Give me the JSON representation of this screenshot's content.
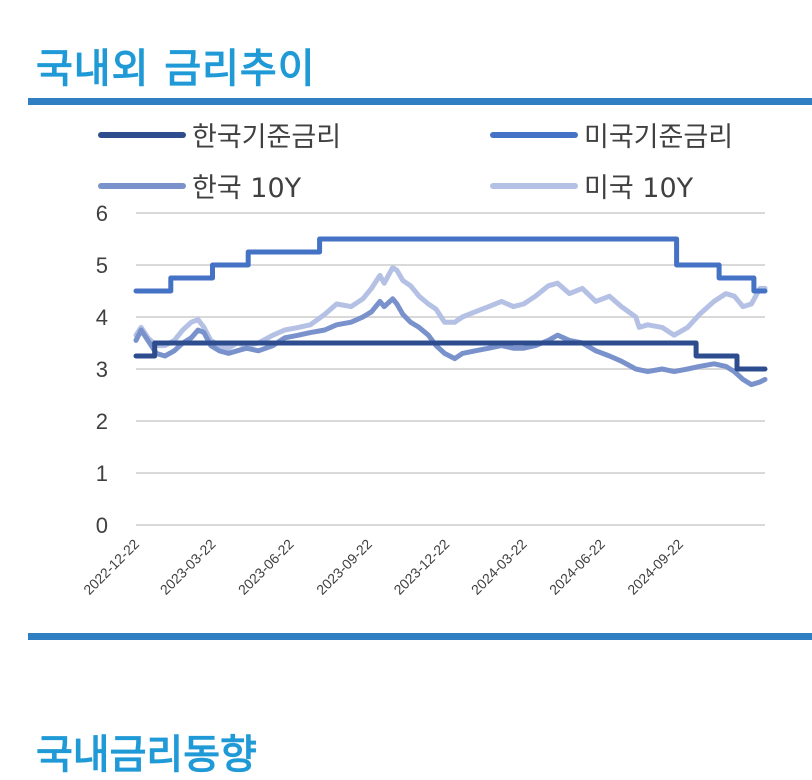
{
  "page": {
    "title": "국내외 금리추이",
    "next_section_title": "국내금리동향"
  },
  "colors": {
    "title": "#1f9ad6",
    "rule": "#2f7fc2",
    "kr_base": "#2e4d8e",
    "us_base": "#4472c4",
    "kr_10y": "#7a92cc",
    "us_10y": "#b4c1e4",
    "grid": "#d9d9d9"
  },
  "chart_data": {
    "type": "line",
    "title": "",
    "ylim": [
      0,
      6
    ],
    "yticks": [
      "0",
      "1",
      "2",
      "3",
      "4",
      "5",
      "6"
    ],
    "x_range": [
      "2022-12-22",
      "2024-12-31"
    ],
    "xticks": [
      "2022-12-22",
      "2023-03-22",
      "2023-06-22",
      "2023-09-22",
      "2023-12-22",
      "2024-03-22",
      "2024-06-22",
      "2024-09-22"
    ],
    "series": [
      {
        "name": "한국기준금리",
        "color": "#2e4d8e",
        "step": true,
        "points": [
          [
            "2022-12-22",
            3.25
          ],
          [
            "2023-01-13",
            3.5
          ],
          [
            "2024-10-11",
            3.25
          ],
          [
            "2024-11-28",
            3.0
          ],
          [
            "2024-12-31",
            3.0
          ]
        ]
      },
      {
        "name": "미국기준금리",
        "color": "#4472c4",
        "step": true,
        "points": [
          [
            "2022-12-22",
            4.5
          ],
          [
            "2023-02-01",
            4.75
          ],
          [
            "2023-03-22",
            5.0
          ],
          [
            "2023-05-03",
            5.25
          ],
          [
            "2023-07-26",
            5.5
          ],
          [
            "2024-09-18",
            5.0
          ],
          [
            "2024-11-07",
            4.75
          ],
          [
            "2024-12-18",
            4.5
          ],
          [
            "2024-12-31",
            4.5
          ]
        ]
      },
      {
        "name": "한국 10Y",
        "color": "#7a92cc",
        "step": false,
        "points": [
          [
            "2022-12-22",
            3.55
          ],
          [
            "2022-12-28",
            3.75
          ],
          [
            "2023-01-05",
            3.55
          ],
          [
            "2023-01-15",
            3.3
          ],
          [
            "2023-01-25",
            3.25
          ],
          [
            "2023-02-05",
            3.35
          ],
          [
            "2023-02-15",
            3.5
          ],
          [
            "2023-02-25",
            3.6
          ],
          [
            "2023-03-05",
            3.75
          ],
          [
            "2023-03-12",
            3.7
          ],
          [
            "2023-03-20",
            3.45
          ],
          [
            "2023-03-30",
            3.35
          ],
          [
            "2023-04-10",
            3.3
          ],
          [
            "2023-04-20",
            3.35
          ],
          [
            "2023-05-01",
            3.4
          ],
          [
            "2023-05-15",
            3.35
          ],
          [
            "2023-06-01",
            3.45
          ],
          [
            "2023-06-15",
            3.6
          ],
          [
            "2023-07-01",
            3.65
          ],
          [
            "2023-07-15",
            3.7
          ],
          [
            "2023-08-01",
            3.75
          ],
          [
            "2023-08-15",
            3.85
          ],
          [
            "2023-09-01",
            3.9
          ],
          [
            "2023-09-15",
            4.0
          ],
          [
            "2023-09-25",
            4.1
          ],
          [
            "2023-10-05",
            4.3
          ],
          [
            "2023-10-10",
            4.2
          ],
          [
            "2023-10-20",
            4.35
          ],
          [
            "2023-10-25",
            4.25
          ],
          [
            "2023-11-01",
            4.05
          ],
          [
            "2023-11-10",
            3.9
          ],
          [
            "2023-11-20",
            3.8
          ],
          [
            "2023-12-01",
            3.65
          ],
          [
            "2023-12-10",
            3.45
          ],
          [
            "2023-12-20",
            3.3
          ],
          [
            "2024-01-01",
            3.2
          ],
          [
            "2024-01-10",
            3.3
          ],
          [
            "2024-01-25",
            3.35
          ],
          [
            "2024-02-10",
            3.4
          ],
          [
            "2024-02-25",
            3.45
          ],
          [
            "2024-03-10",
            3.4
          ],
          [
            "2024-03-22",
            3.4
          ],
          [
            "2024-04-05",
            3.45
          ],
          [
            "2024-04-20",
            3.55
          ],
          [
            "2024-05-01",
            3.65
          ],
          [
            "2024-05-15",
            3.55
          ],
          [
            "2024-05-30",
            3.5
          ],
          [
            "2024-06-15",
            3.35
          ],
          [
            "2024-07-01",
            3.25
          ],
          [
            "2024-07-15",
            3.15
          ],
          [
            "2024-08-01",
            3.0
          ],
          [
            "2024-08-15",
            2.95
          ],
          [
            "2024-09-01",
            3.0
          ],
          [
            "2024-09-15",
            2.95
          ],
          [
            "2024-10-01",
            3.0
          ],
          [
            "2024-10-15",
            3.05
          ],
          [
            "2024-11-01",
            3.1
          ],
          [
            "2024-11-15",
            3.05
          ],
          [
            "2024-11-25",
            2.95
          ],
          [
            "2024-12-05",
            2.8
          ],
          [
            "2024-12-15",
            2.7
          ],
          [
            "2024-12-25",
            2.75
          ],
          [
            "2024-12-31",
            2.8
          ]
        ]
      },
      {
        "name": "미국 10Y",
        "color": "#b4c1e4",
        "step": false,
        "points": [
          [
            "2022-12-22",
            3.65
          ],
          [
            "2022-12-28",
            3.8
          ],
          [
            "2023-01-05",
            3.6
          ],
          [
            "2023-01-15",
            3.45
          ],
          [
            "2023-01-25",
            3.45
          ],
          [
            "2023-02-05",
            3.55
          ],
          [
            "2023-02-15",
            3.75
          ],
          [
            "2023-02-25",
            3.9
          ],
          [
            "2023-03-05",
            3.95
          ],
          [
            "2023-03-12",
            3.8
          ],
          [
            "2023-03-20",
            3.55
          ],
          [
            "2023-03-30",
            3.45
          ],
          [
            "2023-04-10",
            3.4
          ],
          [
            "2023-04-20",
            3.5
          ],
          [
            "2023-05-01",
            3.45
          ],
          [
            "2023-05-15",
            3.5
          ],
          [
            "2023-06-01",
            3.65
          ],
          [
            "2023-06-15",
            3.75
          ],
          [
            "2023-07-01",
            3.8
          ],
          [
            "2023-07-15",
            3.85
          ],
          [
            "2023-08-01",
            4.05
          ],
          [
            "2023-08-15",
            4.25
          ],
          [
            "2023-09-01",
            4.2
          ],
          [
            "2023-09-15",
            4.35
          ],
          [
            "2023-09-25",
            4.55
          ],
          [
            "2023-10-05",
            4.8
          ],
          [
            "2023-10-10",
            4.65
          ],
          [
            "2023-10-20",
            4.95
          ],
          [
            "2023-10-25",
            4.9
          ],
          [
            "2023-11-01",
            4.7
          ],
          [
            "2023-11-10",
            4.6
          ],
          [
            "2023-11-20",
            4.4
          ],
          [
            "2023-12-01",
            4.25
          ],
          [
            "2023-12-10",
            4.15
          ],
          [
            "2023-12-20",
            3.9
          ],
          [
            "2024-01-01",
            3.9
          ],
          [
            "2024-01-10",
            4.0
          ],
          [
            "2024-01-25",
            4.1
          ],
          [
            "2024-02-10",
            4.2
          ],
          [
            "2024-02-25",
            4.3
          ],
          [
            "2024-03-10",
            4.2
          ],
          [
            "2024-03-22",
            4.25
          ],
          [
            "2024-04-05",
            4.4
          ],
          [
            "2024-04-20",
            4.6
          ],
          [
            "2024-05-01",
            4.65
          ],
          [
            "2024-05-15",
            4.45
          ],
          [
            "2024-05-30",
            4.55
          ],
          [
            "2024-06-15",
            4.3
          ],
          [
            "2024-07-01",
            4.4
          ],
          [
            "2024-07-15",
            4.2
          ],
          [
            "2024-08-01",
            4.0
          ],
          [
            "2024-08-05",
            3.8
          ],
          [
            "2024-08-15",
            3.85
          ],
          [
            "2024-09-01",
            3.8
          ],
          [
            "2024-09-15",
            3.65
          ],
          [
            "2024-10-01",
            3.8
          ],
          [
            "2024-10-15",
            4.05
          ],
          [
            "2024-11-01",
            4.3
          ],
          [
            "2024-11-15",
            4.45
          ],
          [
            "2024-11-25",
            4.4
          ],
          [
            "2024-12-05",
            4.2
          ],
          [
            "2024-12-15",
            4.25
          ],
          [
            "2024-12-25",
            4.55
          ],
          [
            "2024-12-31",
            4.55
          ]
        ]
      }
    ],
    "legend": [
      "한국기준금리",
      "미국기준금리",
      "한국 10Y",
      "미국 10Y"
    ]
  }
}
